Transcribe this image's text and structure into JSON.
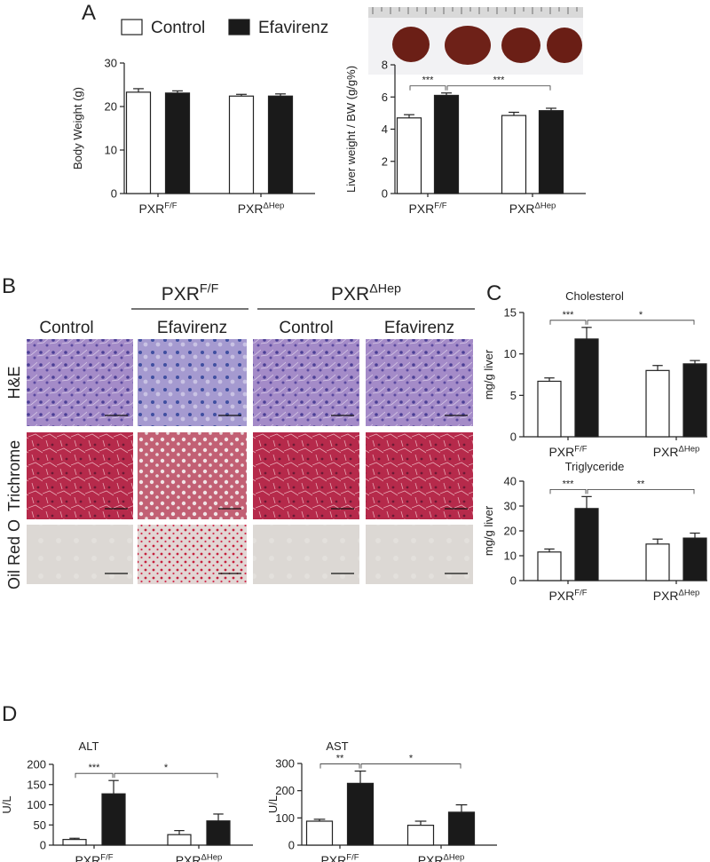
{
  "panel_labels": [
    "A",
    "B",
    "C",
    "D"
  ],
  "histology": {
    "groups": [
      [
        "PXR",
        "F/F"
      ],
      [
        "PXR",
        "ΔHep"
      ]
    ],
    "columns": [
      "Control",
      "Efavirenz",
      "Control",
      "Efavirenz"
    ],
    "rows": [
      "H&E",
      "Trichrome",
      "Oil Red O"
    ]
  },
  "chart_data": [
    {
      "type": "bar",
      "y_label": "Body Weight (g)",
      "legend": "top",
      "categories": [
        [
          "PXR",
          "F/F"
        ],
        [
          "PXR",
          "ΔHep"
        ]
      ],
      "series": [
        {
          "name": "Control",
          "color": "#ffffff",
          "values": [
            23.3,
            22.4
          ],
          "errors": [
            0.8,
            0.4
          ]
        },
        {
          "name": "Efavirenz",
          "color": "#1a1a1a",
          "values": [
            23.1,
            22.4
          ],
          "errors": [
            0.5,
            0.5
          ]
        }
      ],
      "ylim": [
        0,
        30
      ],
      "yticks": [
        0,
        10,
        20,
        30
      ]
    },
    {
      "type": "bar",
      "y_label": "Liver weight / BW (g/g%)",
      "categories": [
        [
          "PXR",
          "F/F"
        ],
        [
          "PXR",
          "ΔHep"
        ]
      ],
      "series": [
        {
          "color": "#ffffff",
          "values": [
            4.7,
            4.85
          ],
          "errors": [
            0.2,
            0.2
          ]
        },
        {
          "color": "#1a1a1a",
          "values": [
            6.1,
            5.15
          ],
          "errors": [
            0.15,
            0.15
          ]
        }
      ],
      "ylim": [
        0,
        8
      ],
      "yticks": [
        0,
        2,
        4,
        6,
        8
      ],
      "annotations": [
        "***",
        "***"
      ]
    },
    {
      "type": "bar",
      "title": "Cholesterol",
      "y_label": "mg/g liver",
      "categories": [
        [
          "PXR",
          "F/F"
        ],
        [
          "PXR",
          "ΔHep"
        ]
      ],
      "series": [
        {
          "color": "#ffffff",
          "values": [
            6.7,
            8.0
          ],
          "errors": [
            0.4,
            0.6
          ]
        },
        {
          "color": "#1a1a1a",
          "values": [
            11.8,
            8.8
          ],
          "errors": [
            1.4,
            0.4
          ]
        }
      ],
      "ylim": [
        0,
        15
      ],
      "yticks": [
        0,
        5,
        10,
        15
      ],
      "annotations": [
        "***",
        "*"
      ]
    },
    {
      "type": "bar",
      "title": "Triglyceride",
      "y_label": "mg/g liver",
      "categories": [
        [
          "PXR",
          "F/F"
        ],
        [
          "PXR",
          "ΔHep"
        ]
      ],
      "series": [
        {
          "color": "#ffffff",
          "values": [
            11.5,
            14.7
          ],
          "errors": [
            1.2,
            2
          ]
        },
        {
          "color": "#1a1a1a",
          "values": [
            29,
            17.1
          ],
          "errors": [
            4.8,
            2
          ]
        }
      ],
      "ylim": [
        0,
        40
      ],
      "yticks": [
        0,
        10,
        20,
        30,
        40
      ],
      "annotations": [
        "***",
        "**"
      ]
    },
    {
      "type": "bar",
      "title": "ALT",
      "y_label": "U/L",
      "categories": [
        [
          "PXR",
          "F/F"
        ],
        [
          "PXR",
          "ΔHep"
        ]
      ],
      "series": [
        {
          "color": "#ffffff",
          "values": [
            14,
            26
          ],
          "errors": [
            3,
            10
          ]
        },
        {
          "color": "#1a1a1a",
          "values": [
            127,
            60
          ],
          "errors": [
            33,
            17
          ]
        }
      ],
      "ylim": [
        0,
        200
      ],
      "yticks": [
        0,
        50,
        100,
        150,
        200
      ],
      "annotations": [
        "***",
        "*"
      ]
    },
    {
      "type": "bar",
      "title": "AST",
      "y_label": "U/L",
      "categories": [
        [
          "PXR",
          "F/F"
        ],
        [
          "PXR",
          "ΔHep"
        ]
      ],
      "series": [
        {
          "color": "#ffffff",
          "values": [
            88,
            73
          ],
          "errors": [
            7,
            15
          ]
        },
        {
          "color": "#1a1a1a",
          "values": [
            227,
            121
          ],
          "errors": [
            45,
            27
          ]
        }
      ],
      "ylim": [
        0,
        300
      ],
      "yticks": [
        0,
        100,
        200,
        300
      ],
      "annotations": [
        "**",
        "*"
      ]
    }
  ]
}
